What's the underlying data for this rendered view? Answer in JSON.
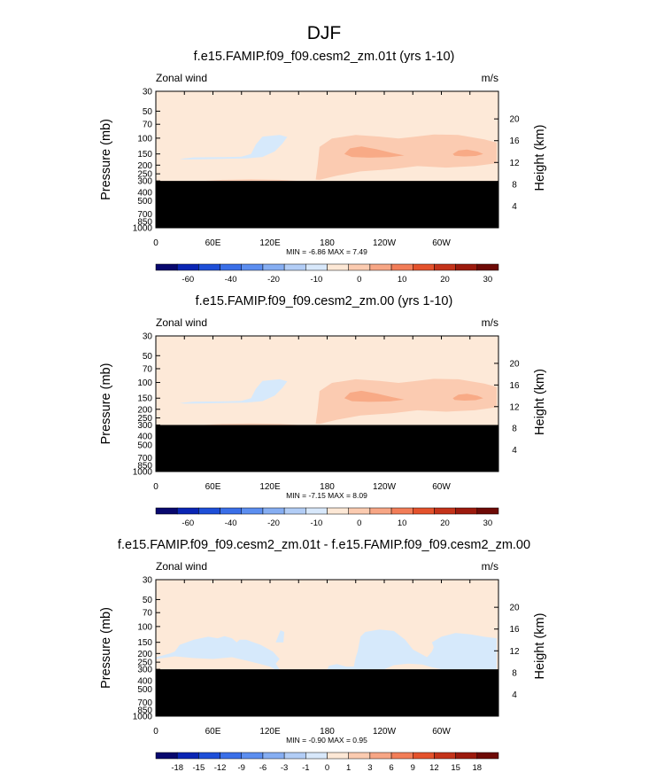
{
  "figure_title": "DJF",
  "chart_data": [
    {
      "type": "contour",
      "title": "f.e15.FAMIP.f09_f09.cesm2_zm.01t (yrs 1-10)",
      "left_label": "Zonal wind",
      "right_label": "m/s",
      "ylabel": "Pressure (mb)",
      "y2label": "Height (km)",
      "x_ticks": [
        "0",
        "60E",
        "120E",
        "180",
        "120W",
        "60W"
      ],
      "x_tick_values": [
        0,
        60,
        120,
        180,
        240,
        300
      ],
      "xlim": [
        0,
        360
      ],
      "y_ticks": [
        "30",
        "50",
        "70",
        "100",
        "150",
        "200",
        "250",
        "300",
        "400",
        "500",
        "700",
        "850",
        "1000"
      ],
      "y_tick_values": [
        30,
        50,
        70,
        100,
        150,
        200,
        250,
        300,
        400,
        500,
        700,
        850,
        1000
      ],
      "ylim": [
        30,
        1000
      ],
      "y2_ticks": [
        "20",
        "16",
        "12",
        "8",
        "4"
      ],
      "y2_tick_values": [
        20,
        16,
        12,
        8,
        4
      ],
      "stats": "MIN = -6.86 MAX = 7.49",
      "masked_below_pressure": 300,
      "colorbar_labels": [
        "-60",
        "-40",
        "-20",
        "-10",
        "0",
        "10",
        "20",
        "30"
      ],
      "colorbar_levels": [
        -60,
        -40,
        -20,
        -10,
        0,
        10,
        20,
        30
      ]
    },
    {
      "type": "contour",
      "title": "f.e15.FAMIP.f09_f09.cesm2_zm.00 (yrs 1-10)",
      "left_label": "Zonal wind",
      "right_label": "m/s",
      "ylabel": "Pressure (mb)",
      "y2label": "Height (km)",
      "x_ticks": [
        "0",
        "60E",
        "120E",
        "180",
        "120W",
        "60W"
      ],
      "x_tick_values": [
        0,
        60,
        120,
        180,
        240,
        300
      ],
      "xlim": [
        0,
        360
      ],
      "y_ticks": [
        "30",
        "50",
        "70",
        "100",
        "150",
        "200",
        "250",
        "300",
        "400",
        "500",
        "700",
        "850",
        "1000"
      ],
      "y_tick_values": [
        30,
        50,
        70,
        100,
        150,
        200,
        250,
        300,
        400,
        500,
        700,
        850,
        1000
      ],
      "ylim": [
        30,
        1000
      ],
      "y2_ticks": [
        "20",
        "16",
        "12",
        "8",
        "4"
      ],
      "y2_tick_values": [
        20,
        16,
        12,
        8,
        4
      ],
      "stats": "MIN = -7.15 MAX = 8.09",
      "masked_below_pressure": 300,
      "colorbar_labels": [
        "-60",
        "-40",
        "-20",
        "-10",
        "0",
        "10",
        "20",
        "30"
      ],
      "colorbar_levels": [
        -60,
        -40,
        -20,
        -10,
        0,
        10,
        20,
        30
      ]
    },
    {
      "type": "contour",
      "title": "f.e15.FAMIP.f09_f09.cesm2_zm.01t - f.e15.FAMIP.f09_f09.cesm2_zm.00",
      "left_label": "Zonal wind",
      "right_label": "m/s",
      "ylabel": "Pressure (mb)",
      "y2label": "Height (km)",
      "x_ticks": [
        "0",
        "60E",
        "120E",
        "180",
        "120W",
        "60W"
      ],
      "x_tick_values": [
        0,
        60,
        120,
        180,
        240,
        300
      ],
      "xlim": [
        0,
        360
      ],
      "y_ticks": [
        "30",
        "50",
        "70",
        "100",
        "150",
        "200",
        "250",
        "300",
        "400",
        "500",
        "700",
        "850",
        "1000"
      ],
      "y_tick_values": [
        30,
        50,
        70,
        100,
        150,
        200,
        250,
        300,
        400,
        500,
        700,
        850,
        1000
      ],
      "ylim": [
        30,
        1000
      ],
      "y2_ticks": [
        "20",
        "16",
        "12",
        "8",
        "4"
      ],
      "y2_tick_values": [
        20,
        16,
        12,
        8,
        4
      ],
      "stats": "MIN = -0.90 MAX = 0.95",
      "masked_below_pressure": 300,
      "colorbar_labels": [
        "-18",
        "-15",
        "-12",
        "-9",
        "-6",
        "-3",
        "-1",
        "0",
        "1",
        "3",
        "6",
        "9",
        "12",
        "15",
        "18"
      ],
      "colorbar_levels": [
        -18,
        -15,
        -12,
        -9,
        -6,
        -3,
        -1,
        0,
        1,
        3,
        6,
        9,
        12,
        15,
        18
      ]
    }
  ],
  "colors": {
    "colorbar": [
      "#08086e",
      "#0a25b4",
      "#1e4fd8",
      "#3a6fe8",
      "#5c8ef0",
      "#86aef2",
      "#b2cdf6",
      "#d8e8fb",
      "#fde8d6",
      "#fbcbb0",
      "#f7a685",
      "#f27d58",
      "#e4522c",
      "#c4331a",
      "#9c1a0d",
      "#6e0a06"
    ],
    "background": "#fde9d8",
    "light_blue": "#d6e9fb",
    "orange_1": "#fbcbb1",
    "orange_2": "#f8aa86",
    "mask": "#000000"
  }
}
